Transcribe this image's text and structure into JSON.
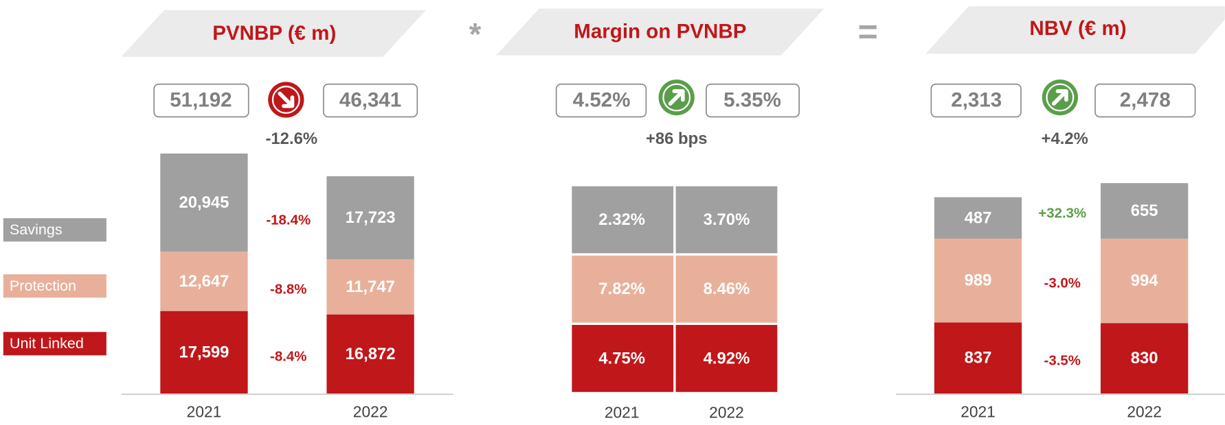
{
  "legend": [
    {
      "name": "Savings",
      "color": "#a0a0a0"
    },
    {
      "name": "Protection",
      "color": "#e8b09a"
    },
    {
      "name": "Unit Linked",
      "color": "#c0171a"
    }
  ],
  "operators": [
    "*",
    "="
  ],
  "chart_data": [
    {
      "type": "bar",
      "stacked": true,
      "title": "PVNBP (€ m)",
      "categories": [
        "2021",
        "2022"
      ],
      "totals": [
        "51,192",
        "46,341"
      ],
      "total_change": "-12.6%",
      "trend": "down",
      "trend_color": "#c0171a",
      "series": [
        {
          "values": [
            20945,
            17723
          ],
          "value_labels": [
            "20,945",
            "17,723"
          ],
          "change": "-18.4%",
          "change_color": "#c0171a"
        },
        {
          "values": [
            12647,
            11747
          ],
          "value_labels": [
            "12,647",
            "11,747"
          ],
          "change": "-8.8%",
          "change_color": "#c0171a"
        },
        {
          "values": [
            17599,
            16872
          ],
          "value_labels": [
            "17,599",
            "16,872"
          ],
          "change": "-8.4%",
          "change_color": "#c0171a"
        }
      ]
    },
    {
      "type": "table",
      "title": "Margin on PVNBP",
      "categories": [
        "2021",
        "2022"
      ],
      "totals": [
        "4.52%",
        "5.35%"
      ],
      "total_change": "+86 bps",
      "trend": "up",
      "trend_color": "#5a9e4a",
      "series": [
        {
          "cells": [
            "2.32%",
            "3.70%"
          ]
        },
        {
          "cells": [
            "7.82%",
            "8.46%"
          ]
        },
        {
          "cells": [
            "4.75%",
            "4.92%"
          ]
        }
      ]
    },
    {
      "type": "bar",
      "stacked": true,
      "title": "NBV (€ m)",
      "categories": [
        "2021",
        "2022"
      ],
      "totals": [
        "2,313",
        "2,478"
      ],
      "total_change": "+4.2%",
      "trend": "up",
      "trend_color": "#5a9e4a",
      "series": [
        {
          "values": [
            487,
            655
          ],
          "change": "+32.3%",
          "change_color": "#5a9e4a"
        },
        {
          "values": [
            989,
            994
          ],
          "change": "-3.0%",
          "change_color": "#c0171a"
        },
        {
          "values": [
            837,
            830
          ],
          "change": "-3.5%",
          "change_color": "#c0171a"
        }
      ]
    }
  ]
}
